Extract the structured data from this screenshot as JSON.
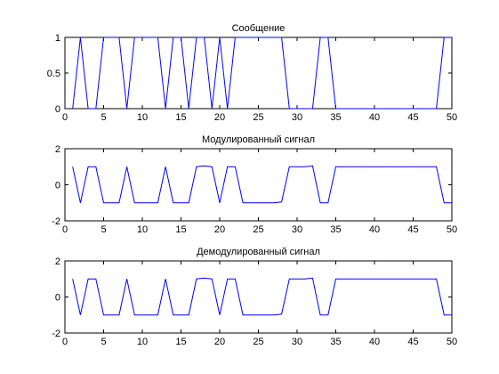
{
  "chart_data": [
    {
      "type": "line",
      "title": "Сообщение",
      "xlim": [
        0,
        50
      ],
      "ylim": [
        0,
        1
      ],
      "xticks": [
        0,
        5,
        10,
        15,
        20,
        25,
        30,
        35,
        40,
        45,
        50
      ],
      "yticks": [
        0,
        0.5,
        1
      ],
      "xtick_labels": [
        "0",
        "5",
        "10",
        "15",
        "20",
        "25",
        "30",
        "35",
        "40",
        "45",
        "50"
      ],
      "ytick_labels": [
        "0",
        "0.5",
        "1"
      ],
      "series": [
        {
          "color": "#0000ff",
          "x": [
            1,
            2,
            3,
            4,
            5,
            6,
            7,
            8,
            9,
            10,
            11,
            12,
            13,
            14,
            15,
            16,
            17,
            18,
            19,
            20,
            21,
            22,
            23,
            24,
            25,
            26,
            27,
            28,
            29,
            30,
            31,
            32,
            33,
            34,
            35,
            36,
            37,
            38,
            39,
            40,
            41,
            42,
            43,
            44,
            45,
            46,
            47,
            48,
            49,
            50
          ],
          "y": [
            0,
            1,
            0,
            0,
            1,
            1,
            1,
            0,
            1,
            1,
            1,
            1,
            0,
            1,
            1,
            0,
            1,
            1,
            0,
            1,
            0,
            1,
            1,
            1,
            1,
            1,
            1,
            1,
            0,
            0,
            0,
            0,
            1,
            1,
            0,
            0,
            0,
            0,
            0,
            0,
            0,
            0,
            0,
            0,
            0,
            0,
            0,
            0,
            1,
            1
          ]
        }
      ]
    },
    {
      "type": "line",
      "title": "Модулированный сигнал",
      "xlim": [
        0,
        50
      ],
      "ylim": [
        -2,
        2
      ],
      "xticks": [
        0,
        5,
        10,
        15,
        20,
        25,
        30,
        35,
        40,
        45,
        50
      ],
      "yticks": [
        -2,
        0,
        2
      ],
      "xtick_labels": [
        "0",
        "5",
        "10",
        "15",
        "20",
        "25",
        "30",
        "35",
        "40",
        "45",
        "50"
      ],
      "ytick_labels": [
        "-2",
        "0",
        "2"
      ],
      "series": [
        {
          "color": "#0000ff",
          "x": [
            1,
            2,
            3,
            4,
            5,
            6,
            7,
            8,
            9,
            10,
            11,
            12,
            13,
            14,
            15,
            16,
            17,
            18,
            19,
            20,
            21,
            22,
            23,
            24,
            25,
            26,
            27,
            28,
            29,
            30,
            31,
            32,
            33,
            34,
            35,
            36,
            37,
            38,
            39,
            40,
            41,
            42,
            43,
            44,
            45,
            46,
            47,
            48,
            49,
            50
          ],
          "y": [
            1,
            -1,
            1,
            1,
            -1,
            -1,
            -1,
            1,
            -1,
            -1,
            -1,
            -1,
            1,
            -1,
            -1,
            -1,
            1,
            1.05,
            1,
            -1,
            1,
            1,
            -1,
            -1,
            -1,
            -1,
            -1,
            -0.95,
            1,
            1,
            1,
            1.05,
            -1,
            -1,
            1,
            1,
            1,
            1,
            1,
            1,
            1,
            1,
            1,
            1,
            1,
            1,
            1,
            1,
            -1,
            -1
          ]
        }
      ]
    },
    {
      "type": "line",
      "title": "Демодулированный сигнал",
      "xlim": [
        0,
        50
      ],
      "ylim": [
        -2,
        2
      ],
      "xticks": [
        0,
        5,
        10,
        15,
        20,
        25,
        30,
        35,
        40,
        45,
        50
      ],
      "yticks": [
        -2,
        0,
        2
      ],
      "xtick_labels": [
        "0",
        "5",
        "10",
        "15",
        "20",
        "25",
        "30",
        "35",
        "40",
        "45",
        "50"
      ],
      "ytick_labels": [
        "-2",
        "0",
        "2"
      ],
      "series": [
        {
          "color": "#0000ff",
          "x": [
            1,
            2,
            3,
            4,
            5,
            6,
            7,
            8,
            9,
            10,
            11,
            12,
            13,
            14,
            15,
            16,
            17,
            18,
            19,
            20,
            21,
            22,
            23,
            24,
            25,
            26,
            27,
            28,
            29,
            30,
            31,
            32,
            33,
            34,
            35,
            36,
            37,
            38,
            39,
            40,
            41,
            42,
            43,
            44,
            45,
            46,
            47,
            48,
            49,
            50
          ],
          "y": [
            1,
            -1,
            1,
            1,
            -1,
            -1,
            -1,
            1,
            -1,
            -1,
            -1,
            -1,
            1,
            -1,
            -1,
            -1,
            1,
            1.05,
            1,
            -1,
            1,
            1,
            -1,
            -1,
            -1,
            -1,
            -1,
            -0.95,
            1,
            1,
            1,
            1.05,
            -1,
            -1,
            1,
            1,
            1,
            1,
            1,
            1,
            1,
            1,
            1,
            1,
            1,
            1,
            1,
            1,
            -1,
            -1
          ]
        }
      ]
    }
  ]
}
